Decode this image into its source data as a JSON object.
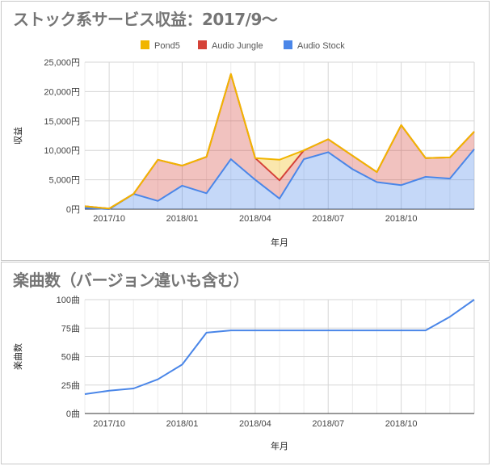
{
  "chart_data": [
    {
      "type": "area",
      "title": "ストック系サービス収益：2017/9～",
      "xlabel": "年月",
      "ylabel": "収益",
      "x_ticks": [
        "2017/10",
        "2018/01",
        "2018/04",
        "2018/07",
        "2018/10"
      ],
      "y_ticks": [
        "0円",
        "5,000円",
        "10,000円",
        "15,000円",
        "20,000円",
        "25,000円"
      ],
      "ylim": [
        0,
        25000
      ],
      "x": [
        "2017/09",
        "2017/10",
        "2017/11",
        "2017/12",
        "2018/01",
        "2018/02",
        "2018/03",
        "2018/04",
        "2018/05",
        "2018/06",
        "2018/07",
        "2018/08",
        "2018/09",
        "2018/10",
        "2018/11",
        "2018/12",
        "2019/01"
      ],
      "stacked": true,
      "legend_position": "top",
      "grid": true,
      "series": [
        {
          "name": "Pond5",
          "color": "#f1b500",
          "values": [
            0,
            0,
            0,
            0,
            0,
            0,
            0,
            0,
            3500,
            0,
            0,
            0,
            0,
            0,
            0,
            0,
            0
          ]
        },
        {
          "name": "Audio Jungle",
          "color": "#d54238",
          "values": [
            300,
            100,
            0,
            7000,
            3400,
            6200,
            14500,
            3700,
            3100,
            1500,
            2200,
            2300,
            1700,
            10200,
            3200,
            3600,
            3000
          ]
        },
        {
          "name": "Audio Stock",
          "color": "#4a86e8",
          "values": [
            200,
            0,
            2600,
            1400,
            4000,
            2700,
            8500,
            5000,
            1800,
            8500,
            9700,
            6800,
            4600,
            4100,
            5500,
            5200,
            10200
          ]
        }
      ]
    },
    {
      "type": "line",
      "title": "楽曲数（バージョン違いも含む）",
      "xlabel": "年月",
      "ylabel": "楽曲数",
      "x_ticks": [
        "2017/10",
        "2018/01",
        "2018/04",
        "2018/07",
        "2018/10"
      ],
      "y_ticks": [
        "0曲",
        "25曲",
        "50曲",
        "75曲",
        "100曲"
      ],
      "ylim": [
        0,
        100
      ],
      "grid": true,
      "x": [
        "2017/09",
        "2017/10",
        "2017/11",
        "2017/12",
        "2018/01",
        "2018/02",
        "2018/03",
        "2018/04",
        "2018/05",
        "2018/06",
        "2018/07",
        "2018/08",
        "2018/09",
        "2018/10",
        "2018/11",
        "2018/12",
        "2019/01"
      ],
      "series": [
        {
          "color": "#4a86e8",
          "values": [
            17,
            20,
            22,
            30,
            43,
            71,
            73,
            73,
            73,
            73,
            73,
            73,
            73,
            73,
            73,
            85,
            100
          ]
        }
      ]
    }
  ]
}
